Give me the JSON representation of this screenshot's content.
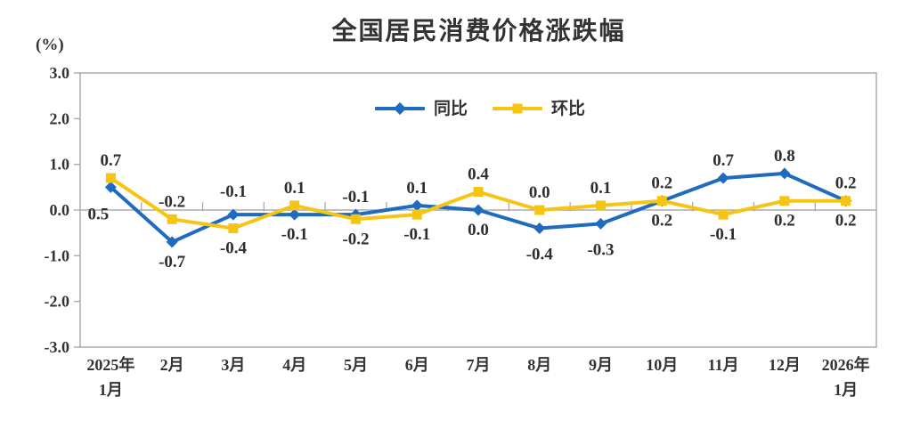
{
  "page": {
    "background": "#FFFFFF"
  },
  "chart_data": {
    "type": "line",
    "title": "全国居民消费价格涨跌幅",
    "unit_label": "(%)",
    "categories": [
      "2025年1月",
      "2月",
      "3月",
      "4月",
      "5月",
      "6月",
      "7月",
      "8月",
      "9月",
      "10月",
      "11月",
      "12月",
      "2026年1月"
    ],
    "category_label_lines": [
      [
        "2025年",
        "1月"
      ],
      [
        "2月"
      ],
      [
        "3月"
      ],
      [
        "4月"
      ],
      [
        "5月"
      ],
      [
        "6月"
      ],
      [
        "7月"
      ],
      [
        "8月"
      ],
      [
        "9月"
      ],
      [
        "10月"
      ],
      [
        "11月"
      ],
      [
        "12月"
      ],
      [
        "2026年",
        "1月"
      ]
    ],
    "series": [
      {
        "key": "yoy",
        "name": "同比",
        "color": "#1E6BC0",
        "marker": "diamond",
        "values": [
          0.5,
          -0.7,
          -0.1,
          -0.1,
          -0.1,
          0.1,
          0.0,
          -0.4,
          -0.3,
          0.2,
          0.7,
          0.8,
          0.2
        ],
        "data_labels": [
          "0.5",
          "-0.7",
          "-0.1",
          "-0.1",
          "-0.1",
          "0.1",
          "0.0",
          "-0.4",
          "-0.3",
          "0.2",
          "0.7",
          "0.8",
          "0.2"
        ],
        "label_side": [
          "below",
          "below",
          "above",
          "below",
          "above",
          "above",
          "below",
          "below",
          "below",
          "above",
          "above",
          "above",
          "above"
        ],
        "label_dx": {
          "0": -14
        },
        "label_dy": {
          "0": 8,
          "2": -6,
          "7": 7,
          "8": 7
        }
      },
      {
        "key": "mom",
        "name": "环比",
        "color": "#F6C413",
        "marker": "square",
        "values": [
          0.7,
          -0.2,
          -0.4,
          0.1,
          -0.2,
          -0.1,
          0.4,
          0.0,
          0.1,
          0.2,
          -0.1,
          0.2,
          0.2
        ],
        "data_labels": [
          "0.7",
          "-0.2",
          "-0.4",
          "0.1",
          "-0.2",
          "-0.1",
          "0.4",
          "0.0",
          "0.1",
          "0.2",
          "-0.1",
          "0.2",
          "0.2"
        ],
        "label_side": [
          "above",
          "above",
          "below",
          "above",
          "below",
          "below",
          "above",
          "above",
          "above",
          "below",
          "below",
          "below",
          "below"
        ],
        "label_dx": {},
        "label_dy": {}
      }
    ],
    "y_axis": {
      "min": -3,
      "max": 3,
      "tick_step": 1,
      "tick_labels": [
        "3.0",
        "2.0",
        "1.0",
        "0.0",
        "-1.0",
        "-2.0",
        "-3.0"
      ]
    },
    "legend": {
      "position": "top-center"
    },
    "grid": {
      "zero_line": true,
      "other_gridlines": false,
      "plot_border": true
    },
    "colors": {
      "axis_line": "#ABABAB",
      "text": "#333333",
      "data_label": "#2E2E2E"
    }
  }
}
